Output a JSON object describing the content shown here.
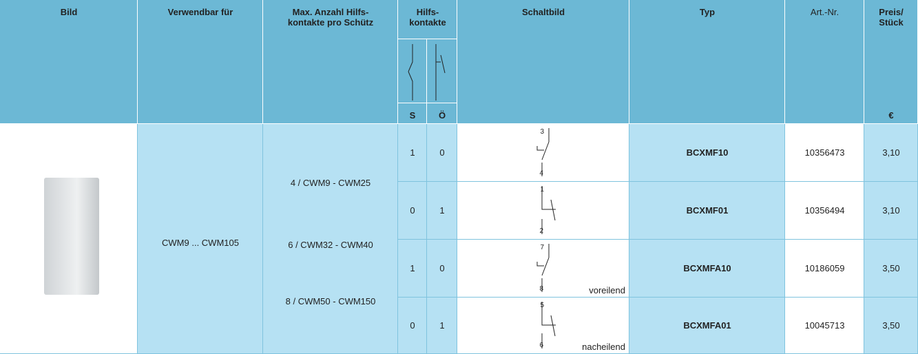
{
  "header": {
    "bild": "Bild",
    "verwendbar": "Verwendbar für",
    "max_contacts": "Max. Anzahl Hilfs-\nkontakte pro Schütz",
    "hilfskontakte": "Hilfs-\nkontakte",
    "schaltbild": "Schaltbild",
    "typ": "Typ",
    "art_nr": "Art.-Nr.",
    "preis": "Preis/\nStück",
    "s": "S",
    "o": "Ö",
    "currency": "€"
  },
  "body": {
    "verwendbar": "CWM9 ... CWM105",
    "max_contacts": [
      "4 / CWM9 - CWM25",
      "6 / CWM32 - CWM40",
      "8 / CWM50 - CWM150"
    ],
    "rows": [
      {
        "s": "1",
        "o": "0",
        "terminals": [
          "3",
          "4"
        ],
        "typ": "BCXMF10",
        "art_nr": "10356473",
        "preis": "3,10"
      },
      {
        "s": "0",
        "o": "1",
        "terminals": [
          "1",
          "2"
        ],
        "typ": "BCXMF01",
        "art_nr": "10356494",
        "preis": "3,10"
      },
      {
        "s": "1",
        "o": "0",
        "terminals": [
          "7",
          "8"
        ],
        "note": "voreilend",
        "typ": "BCXMFA10",
        "art_nr": "10186059",
        "preis": "3,50"
      },
      {
        "s": "0",
        "o": "1",
        "terminals": [
          "5",
          "6"
        ],
        "note": "nacheilend",
        "typ": "BCXMFA01",
        "art_nr": "10045713",
        "preis": "3,50"
      }
    ]
  }
}
